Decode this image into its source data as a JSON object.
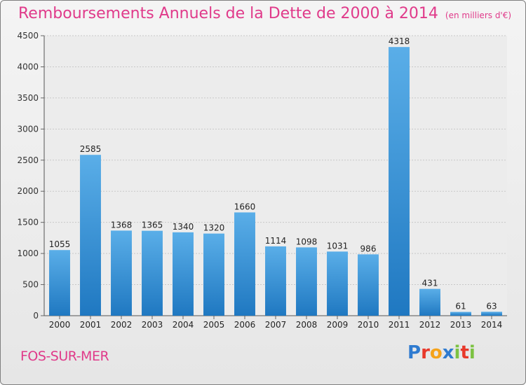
{
  "title": "Remboursements Annuels de la Dette de 2000 à 2014",
  "unit": "(en milliers d'€)",
  "city": "FOS-SUR-MER",
  "logo": {
    "text": "Proxiti",
    "letters": [
      {
        "ch": "P",
        "color": "#2f7bd0"
      },
      {
        "ch": "r",
        "color": "#e8392b"
      },
      {
        "ch": "o",
        "color": "#f5a31a"
      },
      {
        "ch": "x",
        "color": "#2f7bd0"
      },
      {
        "ch": "i",
        "color": "#7cc242"
      },
      {
        "ch": "t",
        "color": "#e8392b"
      },
      {
        "ch": "i",
        "color": "#7cc242"
      }
    ]
  },
  "colors": {
    "accent": "#e03a8a",
    "bar_light": "#5aaee8",
    "bar_dark": "#1f78c1"
  },
  "chart_data": {
    "type": "bar",
    "categories": [
      "2000",
      "2001",
      "2002",
      "2003",
      "2004",
      "2005",
      "2006",
      "2007",
      "2008",
      "2009",
      "2010",
      "2011",
      "2012",
      "2013",
      "2014"
    ],
    "values": [
      1055,
      2585,
      1368,
      1365,
      1340,
      1320,
      1660,
      1114,
      1098,
      1031,
      986,
      4318,
      431,
      61,
      63
    ],
    "ylim": [
      0,
      4500
    ],
    "yticks": [
      0,
      500,
      1000,
      1500,
      2000,
      2500,
      3000,
      3500,
      4000,
      4500
    ],
    "grid": true,
    "xlabel": "",
    "ylabel": ""
  }
}
